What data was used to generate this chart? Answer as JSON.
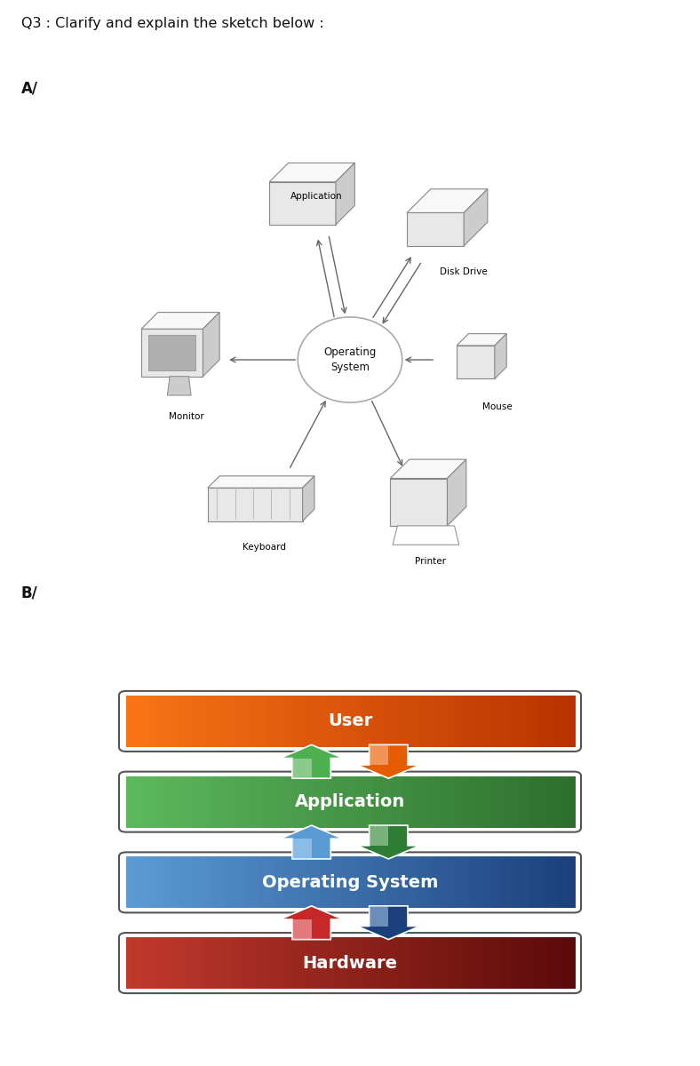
{
  "title": "Q3 : Clarify and explain the sketch below :",
  "section_a": "A/",
  "section_b": "B/",
  "bg_color": "#ffffff",
  "os_label": "Operating\nSystem",
  "layer_boxes": [
    {
      "label": "User",
      "c_light": "#f97316",
      "c_dark": "#b83200"
    },
    {
      "label": "Application",
      "c_light": "#5cb85c",
      "c_dark": "#2d6e2d"
    },
    {
      "label": "Operating System",
      "c_light": "#5b9bd5",
      "c_dark": "#1a3f7a"
    },
    {
      "label": "Hardware",
      "c_light": "#c0392b",
      "c_dark": "#5a0a0a"
    }
  ],
  "arrow_pairs": [
    {
      "up_light": "#c8e6c9",
      "up_dark": "#4caf50",
      "dn_light": "#ffccaa",
      "dn_dark": "#e65c00"
    },
    {
      "up_light": "#bbdefb",
      "up_dark": "#5b9bd5",
      "dn_light": "#c8e6c9",
      "dn_dark": "#2e7d32"
    },
    {
      "up_light": "#ffcdd2",
      "up_dark": "#c62828",
      "dn_light": "#bbdefb",
      "dn_dark": "#1a3f7a"
    }
  ]
}
